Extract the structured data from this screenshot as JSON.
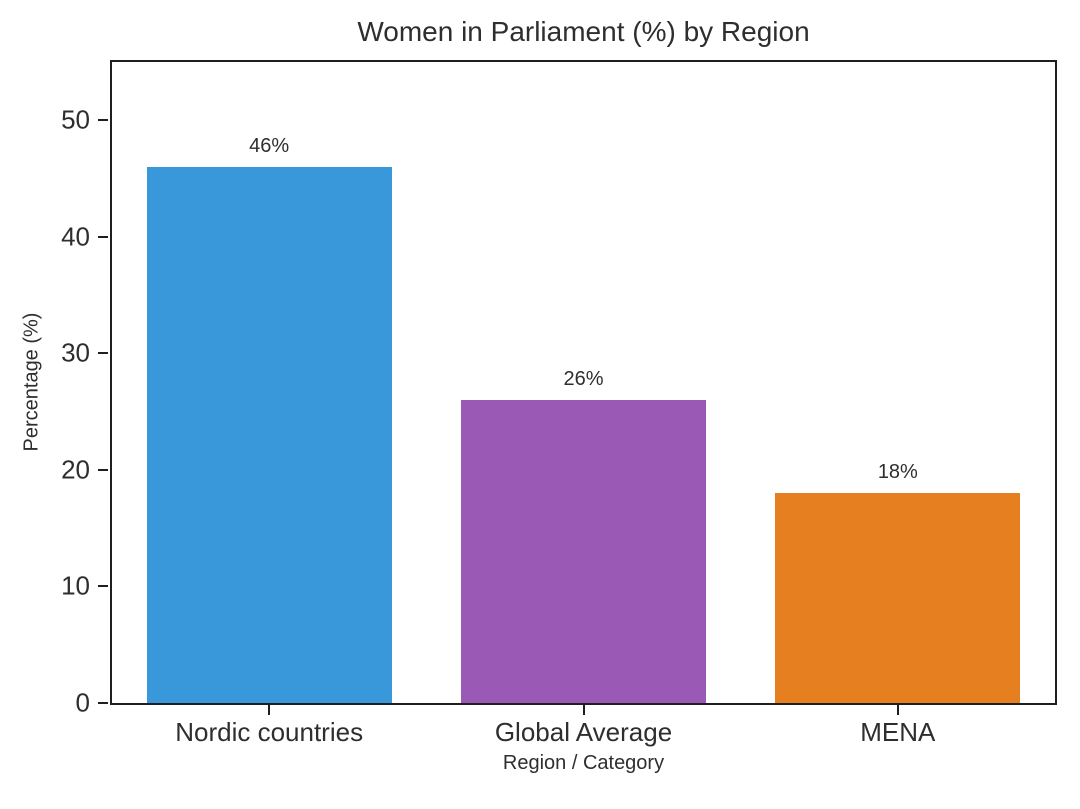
{
  "chart_data": {
    "type": "bar",
    "title": "Women in Parliament (%) by Region",
    "xlabel": "Region / Category",
    "ylabel": "Percentage (%)",
    "categories": [
      "Nordic countries",
      "Global Average",
      "MENA"
    ],
    "values": [
      46,
      26,
      18
    ],
    "value_labels": [
      "46%",
      "26%",
      "18%"
    ],
    "bar_colors": [
      "#3998d9",
      "#9b59b6",
      "#e67f20"
    ],
    "yticks": [
      0,
      10,
      20,
      30,
      40,
      50
    ],
    "ylim": [
      0,
      55
    ],
    "bar_width_ratio": 0.78,
    "grid": false,
    "legend": null,
    "text_color": "#2e2e2e",
    "spine_color": "#1f1f1f",
    "background_color": "#ffffff"
  }
}
